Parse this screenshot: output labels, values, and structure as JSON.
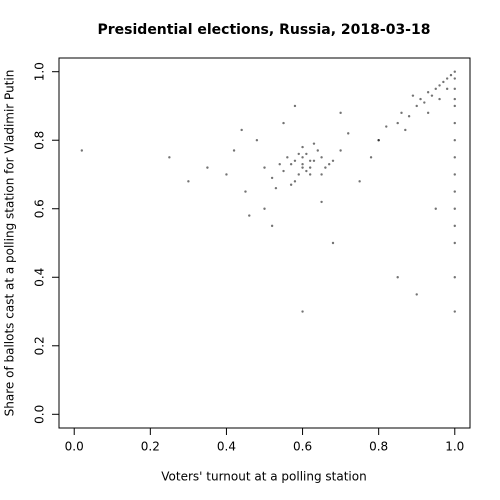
{
  "chart_data": {
    "type": "scatter",
    "title": "Presidential elections, Russia, 2018-03-18",
    "x_label": "Voters' turnout at a polling station",
    "y_label": "Share of ballots cast at a polling station for Vladimir Putin",
    "color": "#000000",
    "xlim": [
      -0.04,
      1.04
    ],
    "ylim": [
      -0.04,
      1.04
    ],
    "xticks": [
      {
        "value": 0,
        "label": "0.0"
      },
      {
        "value": 0.2,
        "label": "0.2"
      },
      {
        "value": 0.4,
        "label": "0.4"
      },
      {
        "value": 0.6,
        "label": "0.6"
      },
      {
        "value": 0.8,
        "label": "0.8"
      },
      {
        "value": 1,
        "label": "1.0"
      }
    ],
    "yticks": [
      {
        "value": 0,
        "label": "0.0"
      },
      {
        "value": 0.2,
        "label": "0.2"
      },
      {
        "value": 0.4,
        "label": "0.4"
      },
      {
        "value": 0.6,
        "label": "0.6"
      },
      {
        "value": 0.8,
        "label": "0.8"
      },
      {
        "value": 1,
        "label": "1.0"
      }
    ],
    "x": [
      0.6,
      0.58,
      0.62,
      0.55,
      0.65,
      0.61,
      0.59,
      0.57,
      0.63,
      0.6,
      0.52,
      0.68,
      0.64,
      0.56,
      0.62,
      0.6,
      0.58,
      0.66,
      0.54,
      0.61,
      0.63,
      0.59,
      0.57,
      0.65,
      0.62,
      0.6,
      0.5,
      0.7,
      0.67,
      0.53,
      0.4,
      0.45,
      0.48,
      0.72,
      0.75,
      0.78,
      0.5,
      0.35,
      0.42,
      0.55,
      0.7,
      0.8,
      0.46,
      0.3,
      0.65,
      0.58,
      0.44,
      0.52,
      0.25,
      0.68,
      0.8,
      0.82,
      0.85,
      0.86,
      0.88,
      0.9,
      0.91,
      0.92,
      0.93,
      0.94,
      0.95,
      0.96,
      0.97,
      0.98,
      0.99,
      0.87,
      0.89,
      0.93,
      0.96,
      0.98,
      1,
      1,
      1,
      1,
      1,
      1,
      1,
      1,
      1,
      1,
      1,
      1,
      1,
      1,
      1,
      0.02,
      0.85,
      0.9,
      0.6,
      0.95
    ],
    "y": [
      0.73,
      0.74,
      0.72,
      0.71,
      0.75,
      0.76,
      0.7,
      0.73,
      0.74,
      0.72,
      0.69,
      0.74,
      0.77,
      0.75,
      0.7,
      0.78,
      0.68,
      0.72,
      0.73,
      0.71,
      0.79,
      0.76,
      0.67,
      0.7,
      0.74,
      0.75,
      0.72,
      0.77,
      0.73,
      0.66,
      0.7,
      0.65,
      0.8,
      0.82,
      0.68,
      0.75,
      0.6,
      0.72,
      0.77,
      0.85,
      0.88,
      0.8,
      0.58,
      0.68,
      0.62,
      0.9,
      0.83,
      0.55,
      0.75,
      0.5,
      0.8,
      0.84,
      0.85,
      0.88,
      0.87,
      0.9,
      0.92,
      0.91,
      0.94,
      0.93,
      0.95,
      0.96,
      0.97,
      0.98,
      0.99,
      0.83,
      0.93,
      0.88,
      0.92,
      0.95,
      1,
      0.98,
      0.95,
      0.92,
      0.9,
      0.85,
      0.8,
      0.75,
      0.7,
      0.65,
      0.6,
      0.55,
      0.5,
      0.4,
      0.3,
      0.77,
      0.4,
      0.35,
      0.3,
      0.6
    ]
  }
}
